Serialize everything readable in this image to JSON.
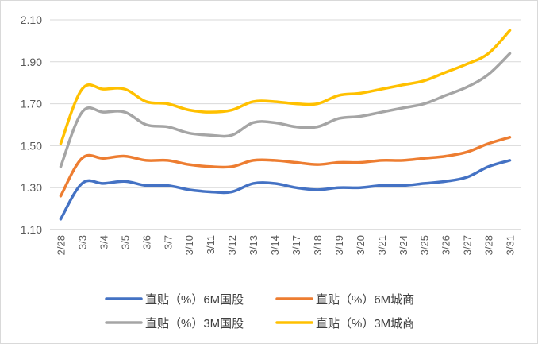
{
  "chart_data": {
    "type": "line",
    "title": "",
    "xlabel": "",
    "ylabel": "",
    "categories": [
      "2/28",
      "3/3",
      "3/4",
      "3/5",
      "3/6",
      "3/7",
      "3/10",
      "3/11",
      "3/12",
      "3/13",
      "3/14",
      "3/17",
      "3/18",
      "3/19",
      "3/20",
      "3/21",
      "3/24",
      "3/25",
      "3/26",
      "3/27",
      "3/28",
      "3/31"
    ],
    "ylim": [
      1.1,
      2.1
    ],
    "yticks": [
      "1.10",
      "1.30",
      "1.50",
      "1.70",
      "1.90",
      "2.10"
    ],
    "grid": true,
    "legend_position": "bottom",
    "series": [
      {
        "name": "直贴（%）6M国股",
        "color": "#4472C4",
        "values": [
          1.15,
          1.32,
          1.32,
          1.33,
          1.31,
          1.31,
          1.29,
          1.28,
          1.28,
          1.32,
          1.32,
          1.3,
          1.29,
          1.3,
          1.3,
          1.31,
          1.31,
          1.32,
          1.33,
          1.35,
          1.4,
          1.43
        ]
      },
      {
        "name": "直贴（%）6M城商",
        "color": "#ED7D31",
        "values": [
          1.26,
          1.44,
          1.44,
          1.45,
          1.43,
          1.43,
          1.41,
          1.4,
          1.4,
          1.43,
          1.43,
          1.42,
          1.41,
          1.42,
          1.42,
          1.43,
          1.43,
          1.44,
          1.45,
          1.47,
          1.51,
          1.54
        ]
      },
      {
        "name": "直贴（%）3M国股",
        "color": "#A5A5A5",
        "values": [
          1.4,
          1.66,
          1.66,
          1.66,
          1.6,
          1.59,
          1.56,
          1.55,
          1.55,
          1.61,
          1.61,
          1.59,
          1.59,
          1.63,
          1.64,
          1.66,
          1.68,
          1.7,
          1.74,
          1.78,
          1.84,
          1.94
        ]
      },
      {
        "name": "直贴（%）3M城商",
        "color": "#FFC000",
        "values": [
          1.51,
          1.77,
          1.77,
          1.77,
          1.71,
          1.7,
          1.67,
          1.66,
          1.67,
          1.71,
          1.71,
          1.7,
          1.7,
          1.74,
          1.75,
          1.77,
          1.79,
          1.81,
          1.85,
          1.89,
          1.94,
          2.05
        ]
      }
    ]
  }
}
